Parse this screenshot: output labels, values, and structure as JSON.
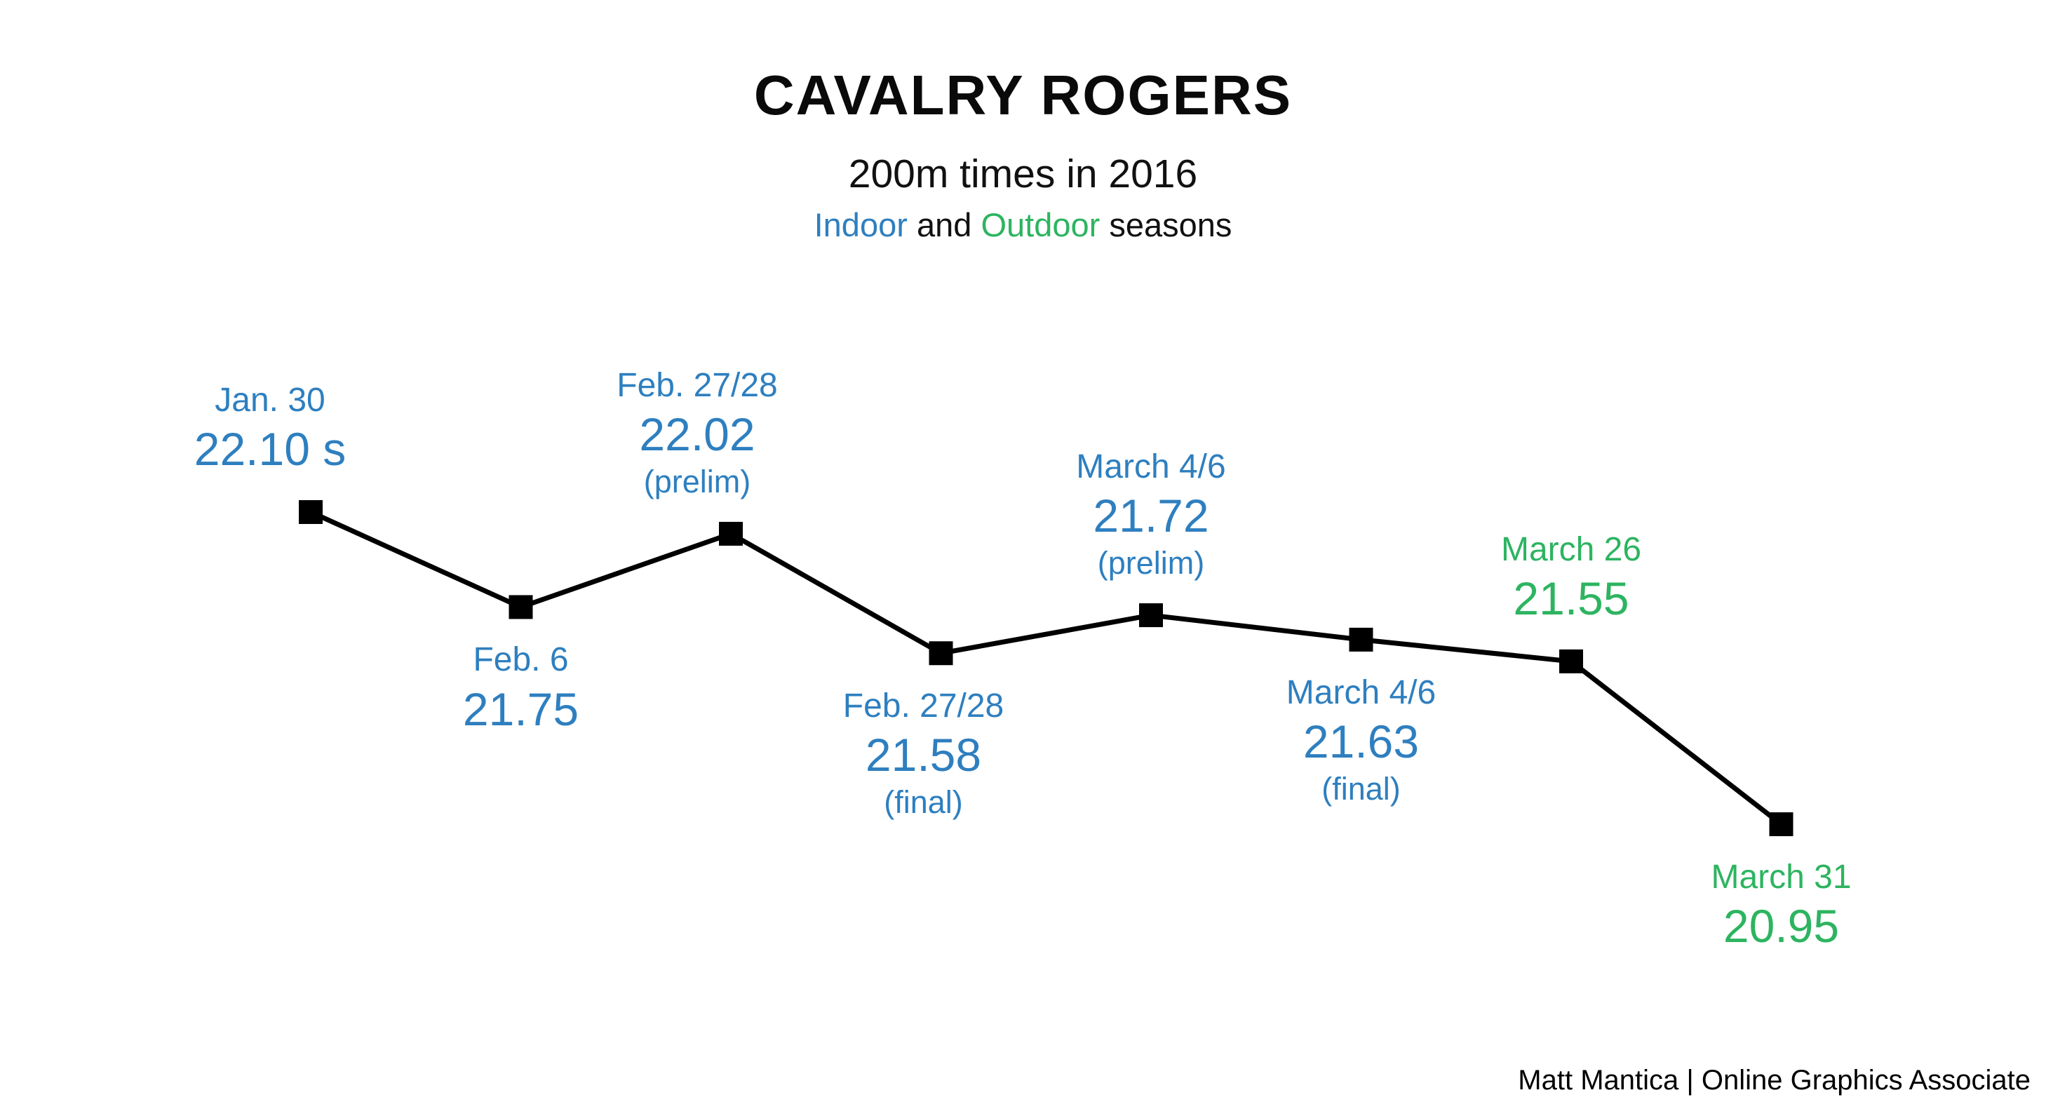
{
  "header": {
    "title": "CAVALRY ROGERS",
    "subtitle": "200m times in 2016",
    "season_line": {
      "indoor": "Indoor",
      "and": " and ",
      "outdoor": "Outdoor",
      "seasons": " seasons"
    }
  },
  "footer": {
    "credit": "Matt Mantica | Online Graphics Associate"
  },
  "colors": {
    "indoor": "#2E7FBF",
    "outdoor": "#2DB460",
    "line": "#000000",
    "marker": "#000000",
    "background": "#FFFFFF",
    "title_text": "#0A0A0A"
  },
  "chart_data": {
    "type": "line",
    "title": "CAVALRY ROGERS",
    "subtitle": "200m times in 2016 — Indoor and Outdoor seasons",
    "unit": "seconds",
    "marker_shape": "square",
    "grid": false,
    "legend": "inline-colored-subtitle",
    "y_range_implied": [
      20.95,
      22.1
    ],
    "series": [
      {
        "name": "200m times",
        "points": [
          {
            "date": "Jan. 30",
            "time": 22.1,
            "time_label": "22.10 s",
            "qualifier": "",
            "season": "indoor",
            "label_position": "above"
          },
          {
            "date": "Feb. 6",
            "time": 21.75,
            "time_label": "21.75",
            "qualifier": "",
            "season": "indoor",
            "label_position": "below"
          },
          {
            "date": "Feb. 27/28",
            "time": 22.02,
            "time_label": "22.02",
            "qualifier": "(prelim)",
            "season": "indoor",
            "label_position": "above"
          },
          {
            "date": "Feb. 27/28",
            "time": 21.58,
            "time_label": "21.58",
            "qualifier": "(final)",
            "season": "indoor",
            "label_position": "below"
          },
          {
            "date": "March 4/6",
            "time": 21.72,
            "time_label": "21.72",
            "qualifier": "(prelim)",
            "season": "indoor",
            "label_position": "above"
          },
          {
            "date": "March 4/6",
            "time": 21.63,
            "time_label": "21.63",
            "qualifier": "(final)",
            "season": "indoor",
            "label_position": "below"
          },
          {
            "date": "March 26",
            "time": 21.55,
            "time_label": "21.55",
            "qualifier": "",
            "season": "outdoor",
            "label_position": "above"
          },
          {
            "date": "March 31",
            "time": 20.95,
            "time_label": "20.95",
            "qualifier": "",
            "season": "outdoor",
            "label_position": "below"
          }
        ]
      }
    ]
  }
}
